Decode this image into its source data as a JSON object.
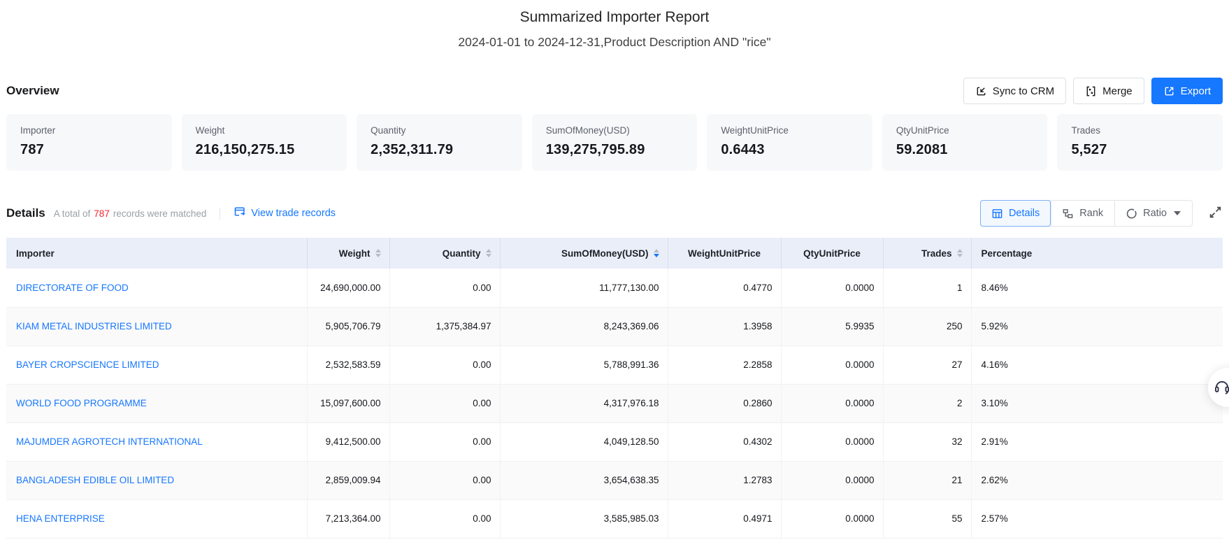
{
  "report": {
    "title": "Summarized Importer Report",
    "subtitle": "2024-01-01 to 2024-12-31,Product Description AND \"rice\""
  },
  "overview": {
    "label": "Overview",
    "buttons": {
      "sync_to_crm": "Sync to CRM",
      "merge": "Merge",
      "export": "Export"
    },
    "cards": [
      {
        "label": "Importer",
        "value": "787"
      },
      {
        "label": "Weight",
        "value": "216,150,275.15"
      },
      {
        "label": "Quantity",
        "value": "2,352,311.79"
      },
      {
        "label": "SumOfMoney(USD)",
        "value": "139,275,795.89"
      },
      {
        "label": "WeightUnitPrice",
        "value": "0.6443"
      },
      {
        "label": "QtyUnitPrice",
        "value": "59.2081"
      },
      {
        "label": "Trades",
        "value": "5,527"
      }
    ]
  },
  "details": {
    "label": "Details",
    "total_prefix": "A total of",
    "total_count": "787",
    "total_suffix": "records were matched",
    "view_link": "View trade records",
    "view_modes": {
      "details": "Details",
      "rank": "Rank",
      "ratio": "Ratio"
    },
    "active_mode": "Details"
  },
  "table": {
    "columns": [
      {
        "label": "Importer",
        "align": "left",
        "sortable": false
      },
      {
        "label": "Weight",
        "align": "right",
        "sortable": true
      },
      {
        "label": "Quantity",
        "align": "right",
        "sortable": true
      },
      {
        "label": "SumOfMoney(USD)",
        "align": "right",
        "sortable": true,
        "sort": "desc"
      },
      {
        "label": "WeightUnitPrice",
        "align": "center",
        "sortable": false
      },
      {
        "label": "QtyUnitPrice",
        "align": "center",
        "sortable": false
      },
      {
        "label": "Trades",
        "align": "right",
        "sortable": true
      },
      {
        "label": "Percentage",
        "align": "left",
        "sortable": false
      }
    ],
    "sort_state": {
      "column": "SumOfMoney(USD)",
      "direction": "desc"
    },
    "rows": [
      [
        "DIRECTORATE OF FOOD",
        "24,690,000.00",
        "0.00",
        "11,777,130.00",
        "0.4770",
        "0.0000",
        "1",
        "8.46%"
      ],
      [
        "KIAM METAL INDUSTRIES LIMITED",
        "5,905,706.79",
        "1,375,384.97",
        "8,243,369.06",
        "1.3958",
        "5.9935",
        "250",
        "5.92%"
      ],
      [
        "BAYER CROPSCIENCE LIMITED",
        "2,532,583.59",
        "0.00",
        "5,788,991.36",
        "2.2858",
        "0.0000",
        "27",
        "4.16%"
      ],
      [
        "WORLD FOOD PROGRAMME",
        "15,097,600.00",
        "0.00",
        "4,317,976.18",
        "0.2860",
        "0.0000",
        "2",
        "3.10%"
      ],
      [
        "MAJUMDER AGROTECH INTERNATIONAL",
        "9,412,500.00",
        "0.00",
        "4,049,128.50",
        "0.4302",
        "0.0000",
        "32",
        "2.91%"
      ],
      [
        "BANGLADESH EDIBLE OIL LIMITED",
        "2,859,009.94",
        "0.00",
        "3,654,638.35",
        "1.2783",
        "0.0000",
        "21",
        "2.62%"
      ],
      [
        "HENA ENTERPRISE",
        "7,213,364.00",
        "0.00",
        "3,585,985.03",
        "0.4971",
        "0.0000",
        "55",
        "2.57%"
      ]
    ]
  },
  "icons": {
    "sync_to_crm": "import-arrow-square",
    "merge": "merge-panels",
    "export": "external-link-square",
    "view_trade_records": "browser-window-arrow",
    "details_mode": "table-grid",
    "rank_mode": "hierarchy-blocks",
    "ratio_mode": "donut-circle",
    "ratio_caret": "caret-down",
    "fullscreen": "expand-arrows",
    "sort": "caret-up-down",
    "support": "headset"
  },
  "colors": {
    "accent_blue": "#1677ff",
    "count_red": "#f5222d",
    "table_header_bg": "#e9eef9",
    "card_bg": "#f7f8fa"
  }
}
